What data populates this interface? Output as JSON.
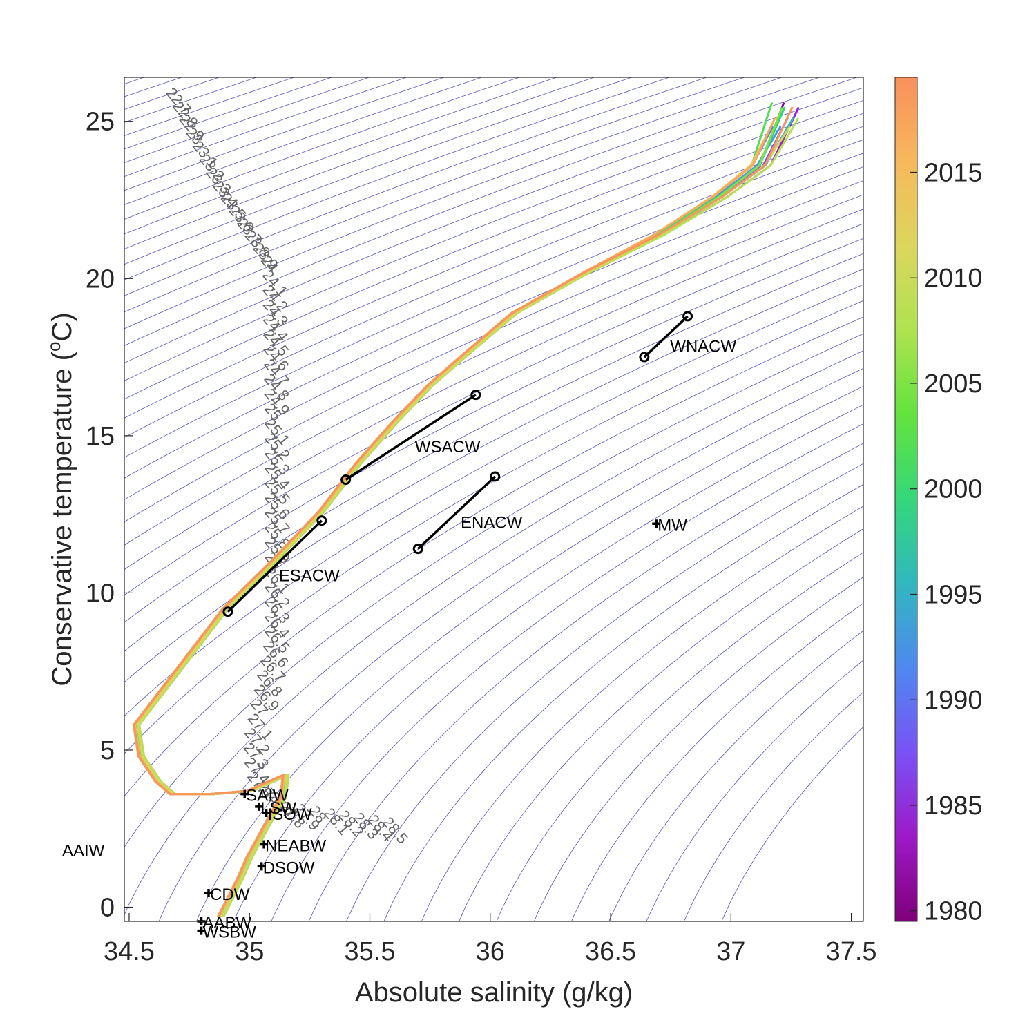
{
  "chart_data": {
    "type": "line",
    "xlabel": "Absolute salinity (g/kg)",
    "ylabel": "Conservative temperature (",
    "ylabel_sup": "o",
    "ylabel_tail": "C)",
    "xlim": [
      34.48,
      37.55
    ],
    "ylim": [
      -0.45,
      26.4
    ],
    "xticks": [
      34.5,
      35,
      35.5,
      36,
      36.5,
      37,
      37.5
    ],
    "yticks": [
      0,
      5,
      10,
      15,
      20,
      25
    ],
    "xtick_labels": [
      "34.5",
      "35",
      "35.5",
      "36",
      "36.5",
      "37",
      "37.5"
    ],
    "ytick_labels": [
      "0",
      "5",
      "10",
      "15",
      "20",
      "25"
    ],
    "grid": false,
    "isopycnal_color": "#5555bb",
    "profile_years": [
      1981,
      1984,
      1987,
      1990,
      1993,
      1996,
      1999,
      2002,
      2005,
      2008,
      2011,
      2014,
      2017,
      2019
    ],
    "profile": {
      "S": [
        34.88,
        34.92,
        34.96,
        35.0,
        35.05,
        35.1,
        35.14,
        35.15,
        35.12,
        35.0,
        34.84,
        34.68,
        34.62,
        34.55,
        34.53,
        34.6,
        34.7,
        34.8,
        34.9,
        35.1,
        35.3,
        35.45,
        35.6,
        35.75,
        35.9,
        36.1,
        36.4,
        36.7,
        36.95,
        37.12,
        37.22
      ],
      "T": [
        -0.3,
        0.3,
        0.9,
        1.6,
        2.3,
        3.0,
        3.5,
        4.2,
        4.1,
        3.7,
        3.6,
        3.6,
        4.0,
        4.8,
        5.8,
        6.5,
        7.5,
        8.5,
        9.5,
        11.0,
        12.6,
        14.1,
        15.4,
        16.6,
        17.6,
        18.9,
        20.2,
        21.4,
        22.6,
        23.6,
        25.2
      ]
    },
    "colorbar": {
      "min": 1979.5,
      "max": 2019.5,
      "ticks": [
        1980,
        1985,
        1990,
        1995,
        2000,
        2005,
        2010,
        2015
      ],
      "tick_labels": [
        "1980",
        "1985",
        "1990",
        "1995",
        "2000",
        "2005",
        "2010",
        "2015"
      ],
      "colormap": [
        "#7e0079",
        "#9d1ac8",
        "#7a52f5",
        "#4f88f0",
        "#31b7bf",
        "#34d77a",
        "#63e33d",
        "#aee350",
        "#dcd65d",
        "#f7b85c",
        "#f9905c"
      ]
    },
    "water_mass_lines": [
      {
        "name": "WNACW",
        "S": [
          36.64,
          36.82
        ],
        "T": [
          17.5,
          18.8
        ]
      },
      {
        "name": "WSACW",
        "S": [
          35.4,
          35.94
        ],
        "T": [
          13.6,
          16.3
        ]
      },
      {
        "name": "ENACW",
        "S": [
          35.7,
          36.02
        ],
        "T": [
          11.4,
          13.7
        ]
      },
      {
        "name": "ESACW",
        "S": [
          34.91,
          35.3
        ],
        "T": [
          9.4,
          12.3
        ]
      }
    ],
    "water_mass_points": [
      {
        "name": "MW",
        "S": 36.69,
        "T": 12.2
      },
      {
        "name": "SAIW",
        "S": 34.98,
        "T": 3.6
      },
      {
        "name": "LSW",
        "S": 35.04,
        "T": 3.2
      },
      {
        "name": "ISOW",
        "S": 35.07,
        "T": 3.0
      },
      {
        "name": "NEABW",
        "S": 35.06,
        "T": 2.0
      },
      {
        "name": "DSOW",
        "S": 35.05,
        "T": 1.3
      },
      {
        "name": "CDW",
        "S": 34.83,
        "T": 0.45
      },
      {
        "name": "AABW",
        "S": 34.8,
        "T": -0.45
      },
      {
        "name": "WSBW",
        "S": 34.8,
        "T": -0.75
      }
    ],
    "aaiw_label": "AAIW",
    "isopycnal_labels": [
      "22.7",
      "22.8",
      "22.9",
      "23",
      "23.1",
      "23.2",
      "23.3",
      "23.4",
      "23.5",
      "23.6",
      "23.7",
      "23.8",
      "23.9",
      "24",
      "24.1",
      "24.2",
      "24.3",
      "24.4",
      "24.5",
      "24.6",
      "24.7",
      "24.8",
      "24.9",
      "25",
      "25.1",
      "25.2",
      "25.3",
      "25.4",
      "25.5",
      "25.6",
      "25.7",
      "25.8",
      "25.9",
      "26",
      "26.1",
      "26.2",
      "26.3",
      "26.4",
      "26.5",
      "26.6",
      "26.7",
      "26.8",
      "26.9",
      "27",
      "27.1",
      "27.2",
      "27.3",
      "27.4",
      "27.5",
      "27.6",
      "27.7",
      "27.8",
      "27.9",
      "28",
      "28.1",
      "28.2",
      "28.3",
      "28.4",
      "28.5"
    ]
  }
}
